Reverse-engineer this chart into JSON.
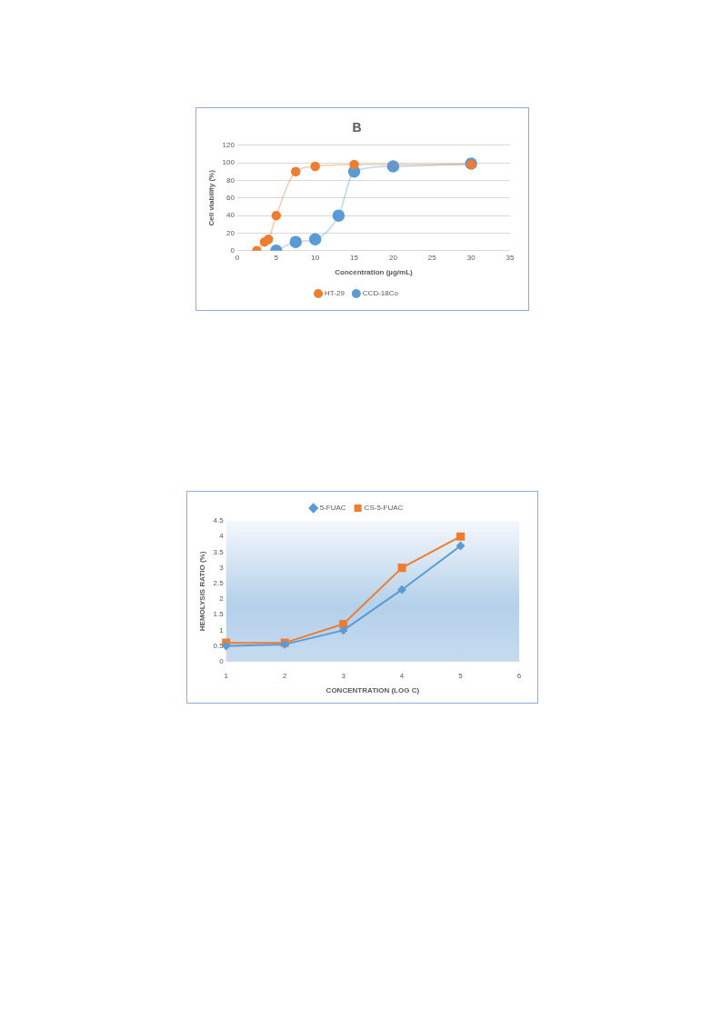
{
  "chart_data": [
    {
      "type": "line",
      "title": "B",
      "xlabel": "Concentration (µg/mL)",
      "ylabel": "Cell viability (%)",
      "xlim": [
        0,
        35
      ],
      "xticks": [
        0,
        5,
        10,
        15,
        20,
        25,
        30,
        35
      ],
      "ylim": [
        0,
        120
      ],
      "yticks": [
        0,
        20,
        40,
        60,
        80,
        100,
        120
      ],
      "grid": "y",
      "legend": "bottom",
      "marker": "circle",
      "series": [
        {
          "name": "HT-29",
          "color": "#ed7d31",
          "x": [
            2.5,
            3.5,
            4,
            5,
            7.5,
            10,
            15,
            30
          ],
          "values": [
            0,
            10,
            13,
            40,
            90,
            96,
            98,
            98
          ]
        },
        {
          "name": "CCD-18Co",
          "color": "#5b9bd5",
          "x": [
            5,
            7.5,
            10,
            13,
            15,
            20,
            30
          ],
          "values": [
            0,
            10,
            13,
            40,
            90,
            96,
            99
          ]
        }
      ]
    },
    {
      "type": "line",
      "xlabel": "CONCENTRATION (LOG C)",
      "ylabel": "HEMOLYSIS RATIO (%)",
      "categories": [
        "1",
        "2",
        "3",
        "4",
        "5",
        "6"
      ],
      "ylim": [
        0,
        4.5
      ],
      "yticks": [
        0,
        0.5,
        1,
        1.5,
        2,
        2.5,
        3,
        3.5,
        4,
        4.5
      ],
      "grid": false,
      "legend": "top",
      "series": [
        {
          "name": "5-FUAC",
          "color": "#5b9bd5",
          "marker": "diamond",
          "values": [
            0.5,
            0.55,
            1.0,
            2.3,
            3.7,
            null
          ]
        },
        {
          "name": "CS-5-FUAC",
          "color": "#ed7d31",
          "marker": "square",
          "values": [
            0.6,
            0.6,
            1.2,
            3.0,
            4.0,
            null
          ]
        }
      ]
    }
  ]
}
